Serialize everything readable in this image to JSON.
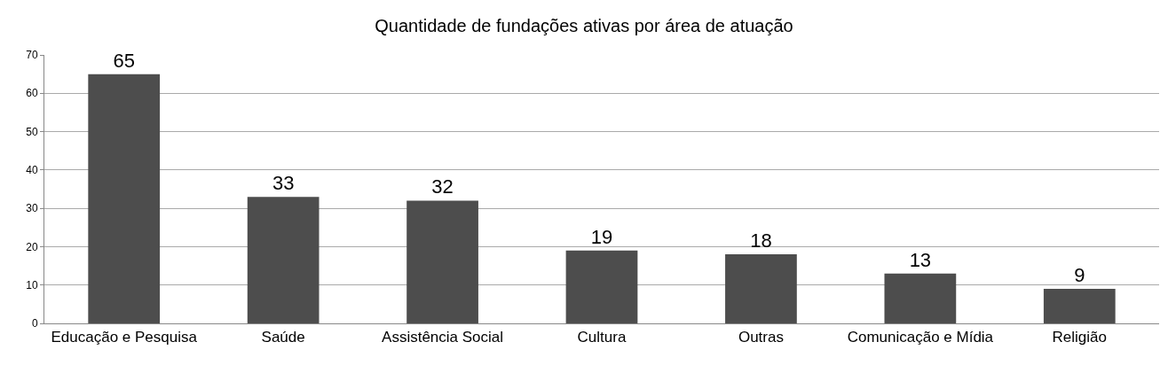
{
  "chart_data": {
    "type": "bar",
    "title": "Quantidade de fundações ativas por área de atuação",
    "categories": [
      "Educação e Pesquisa",
      "Saúde",
      "Assistência Social",
      "Cultura",
      "Outras",
      "Comunicação e Mídia",
      "Religião"
    ],
    "values": [
      65,
      33,
      32,
      19,
      18,
      13,
      9
    ],
    "color": "#4d4d4d",
    "ylim": [
      0,
      70
    ],
    "yticks": [
      0,
      10,
      20,
      30,
      40,
      50,
      60,
      70
    ],
    "grid": "y",
    "data_labels": true
  }
}
